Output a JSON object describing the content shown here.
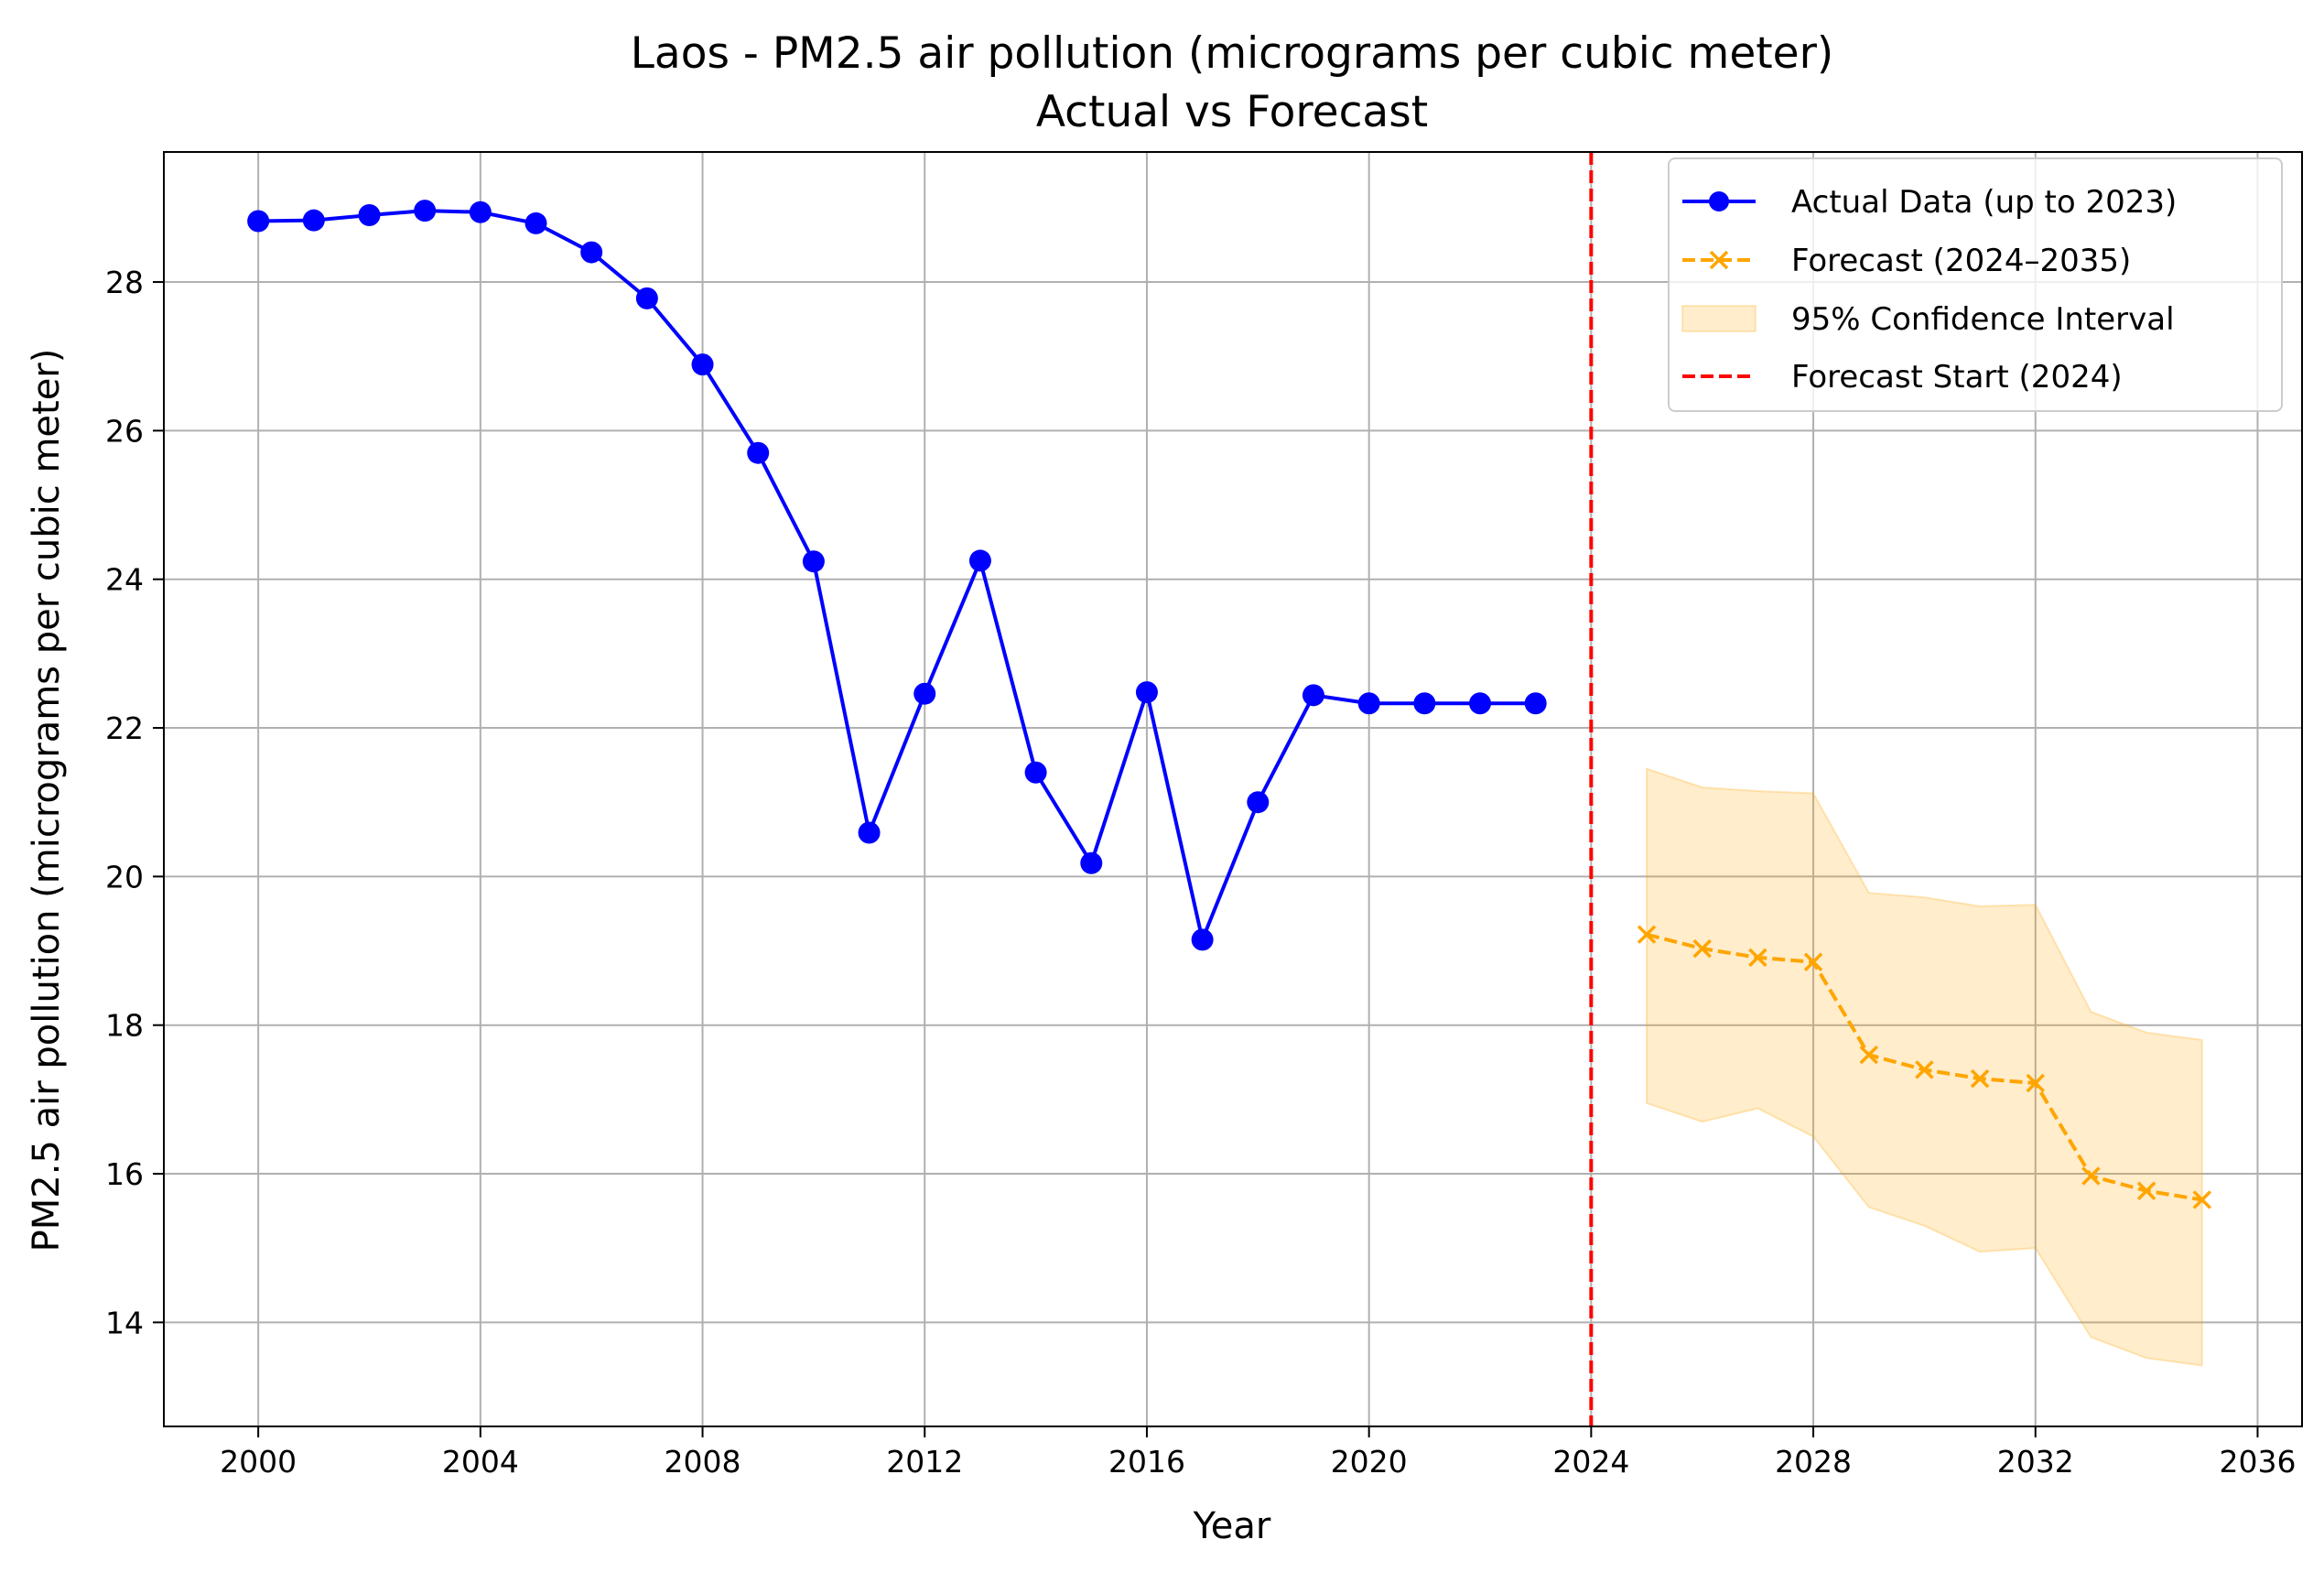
{
  "chart_data": {
    "type": "line",
    "title": "Laos - PM2.5 air pollution (micrograms per cubic meter)",
    "subtitle": "Actual vs Forecast",
    "xlabel": "Year",
    "ylabel": "PM2.5 air pollution (micrograms per cubic meter)",
    "xlim": [
      1998.3,
      2036.8
    ],
    "ylim": [
      12.6,
      29.75
    ],
    "x_ticks": [
      2000,
      2004,
      2008,
      2012,
      2016,
      2020,
      2024,
      2028,
      2032,
      2036
    ],
    "y_ticks": [
      14,
      16,
      18,
      20,
      22,
      24,
      26,
      28
    ],
    "grid": true,
    "legend_position": "top-right",
    "series": [
      {
        "name": "Actual Data (up to 2023)",
        "style": "solid-line-circle-markers",
        "color": "#0000ff",
        "x": [
          2000,
          2001,
          2002,
          2003,
          2004,
          2005,
          2006,
          2007,
          2008,
          2009,
          2010,
          2011,
          2012,
          2013,
          2014,
          2015,
          2016,
          2017,
          2018,
          2019,
          2020,
          2021,
          2022,
          2023
        ],
        "values": [
          28.82,
          28.83,
          28.9,
          28.96,
          28.94,
          28.79,
          28.4,
          27.78,
          26.89,
          25.7,
          24.24,
          20.59,
          22.46,
          24.25,
          21.4,
          20.18,
          22.48,
          19.15,
          21.0,
          22.44,
          22.33,
          22.33,
          22.33,
          22.33
        ]
      },
      {
        "name": "Forecast (2024–2035)",
        "style": "dashed-line-x-markers",
        "color": "#ffa500",
        "x": [
          2025,
          2026,
          2027,
          2028,
          2029,
          2030,
          2031,
          2032,
          2033,
          2034,
          2035
        ],
        "values": [
          19.22,
          19.03,
          18.91,
          18.85,
          17.6,
          17.4,
          17.28,
          17.22,
          15.97,
          15.77,
          15.65
        ]
      }
    ],
    "confidence_interval": {
      "name": "95% Confidence Interval",
      "color": "#ffa500",
      "x": [
        2025,
        2026,
        2027,
        2028,
        2029,
        2030,
        2031,
        2032,
        2033,
        2034,
        2035
      ],
      "lower": [
        16.95,
        16.7,
        16.88,
        16.5,
        15.55,
        15.3,
        14.95,
        15.0,
        13.8,
        13.52,
        13.42
      ],
      "upper": [
        21.45,
        21.2,
        21.15,
        21.12,
        19.78,
        19.72,
        19.6,
        19.62,
        18.18,
        17.9,
        17.8
      ]
    },
    "forecast_start": {
      "name": "Forecast Start (2024)",
      "x": 2024,
      "color": "#ff0000"
    }
  }
}
